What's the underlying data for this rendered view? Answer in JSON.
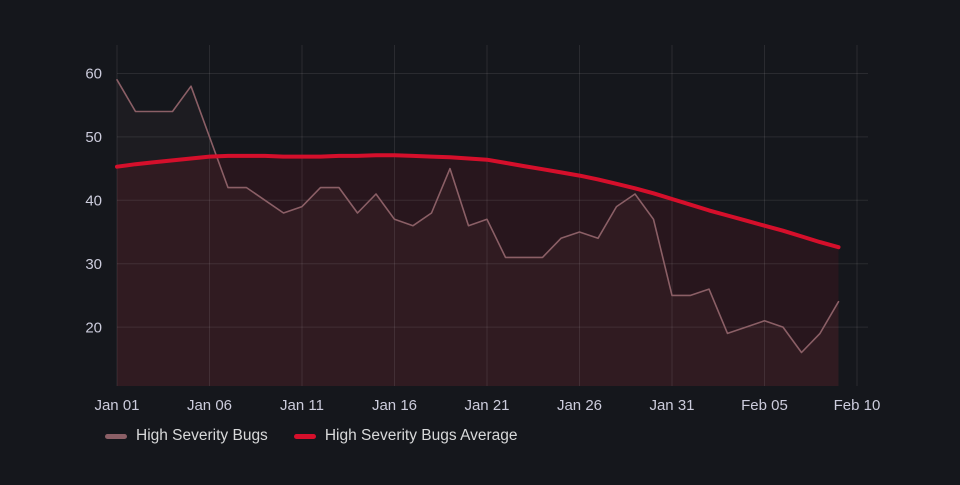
{
  "window": {
    "background_color": "#15171c",
    "text_color": "#ccccdc",
    "grid_color": "rgba(255,255,255,0.09)"
  },
  "chart_data": {
    "type": "line",
    "title": "",
    "xlabel": "",
    "ylabel": "",
    "grid": true,
    "legend_position": "bottom-left",
    "ylim": [
      10.7,
      64.5
    ],
    "y_tick_labels": [
      60,
      50,
      40,
      30,
      20
    ],
    "x_tick_labels": [
      "Jan 01",
      "Jan 06",
      "Jan 11",
      "Jan 16",
      "Jan 21",
      "Jan 26",
      "Jan 31",
      "Feb 05",
      "Feb 10"
    ],
    "x": [
      "Jan 01",
      "Jan 02",
      "Jan 03",
      "Jan 04",
      "Jan 05",
      "Jan 06",
      "Jan 07",
      "Jan 08",
      "Jan 09",
      "Jan 10",
      "Jan 11",
      "Jan 12",
      "Jan 13",
      "Jan 14",
      "Jan 15",
      "Jan 16",
      "Jan 17",
      "Jan 18",
      "Jan 19",
      "Jan 20",
      "Jan 21",
      "Jan 22",
      "Jan 23",
      "Jan 24",
      "Jan 25",
      "Jan 26",
      "Jan 27",
      "Jan 28",
      "Jan 29",
      "Jan 30",
      "Jan 31",
      "Feb 01",
      "Feb 02",
      "Feb 03",
      "Feb 04",
      "Feb 05",
      "Feb 06",
      "Feb 07",
      "Feb 08",
      "Feb 09"
    ],
    "series": [
      {
        "name": "High Severity Bugs",
        "color": "#8b5f66",
        "line_width": 1.6,
        "fill_opacity": 0.07,
        "values": [
          59,
          54,
          54,
          54,
          58,
          50,
          42,
          42,
          40,
          38,
          39,
          42,
          42,
          38,
          41,
          37,
          36,
          38,
          45,
          36,
          37,
          31,
          31,
          31,
          34,
          35,
          34,
          39,
          41,
          37,
          25,
          25,
          26,
          19,
          20,
          21,
          20,
          16,
          19,
          24
        ]
      },
      {
        "name": "High Severity Bugs Average",
        "color": "#d50f2b",
        "line_width": 4,
        "fill_opacity": 0.1,
        "values": [
          45.3,
          45.7,
          46.0,
          46.3,
          46.6,
          46.9,
          47.0,
          47.0,
          47.0,
          46.9,
          46.9,
          46.9,
          47.0,
          47.0,
          47.1,
          47.1,
          47.0,
          46.9,
          46.8,
          46.6,
          46.4,
          45.9,
          45.4,
          44.9,
          44.4,
          43.9,
          43.3,
          42.6,
          41.9,
          41.1,
          40.2,
          39.3,
          38.4,
          37.6,
          36.8,
          36.0,
          35.2,
          34.3,
          33.4,
          32.6
        ]
      }
    ]
  }
}
